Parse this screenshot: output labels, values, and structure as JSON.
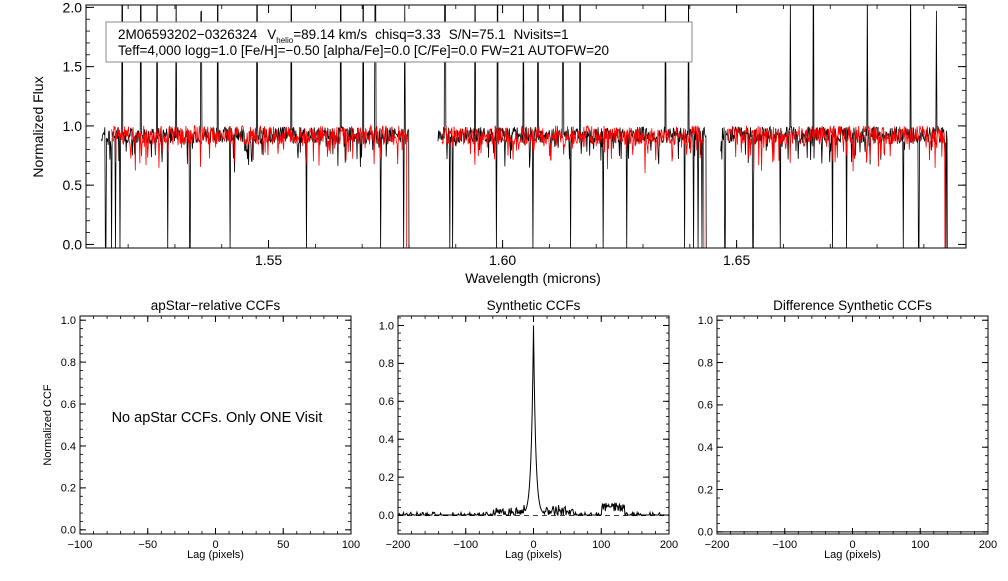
{
  "chart_data": [
    {
      "id": "spectrum",
      "type": "line",
      "xlabel": "Wavelength (microns)",
      "ylabel": "Normalized Flux",
      "xlim": [
        1.511,
        1.699
      ],
      "ylim": [
        -0.03,
        2.02
      ],
      "xticks": [
        {
          "v": 1.55,
          "label": "1.55"
        },
        {
          "v": 1.6,
          "label": "1.60"
        },
        {
          "v": 1.65,
          "label": "1.65"
        }
      ],
      "yticks": [
        {
          "v": 0.0,
          "label": "0.0"
        },
        {
          "v": 0.5,
          "label": "0.5"
        },
        {
          "v": 1.0,
          "label": "1.0"
        },
        {
          "v": 1.5,
          "label": "1.5"
        },
        {
          "v": 2.0,
          "label": "2.0"
        }
      ],
      "annotation": {
        "star_id": "2M06593202−0326324",
        "vhelio_symbol": "V",
        "vhelio_subscript": "helio",
        "vhelio_value": "=89.14 km/s",
        "chisq": "chisq=3.33",
        "snr": "S/N=75.1",
        "nvisits": "Nvisits=1",
        "params": "Teff=4,000 logg=1.0 [Fe/H]=−0.50 [alpha/Fe]=0.0 [C/Fe]=0.0 FW=21 AUTOFW=20"
      },
      "series": [
        {
          "name": "observed",
          "color": "#000000",
          "chips": [
            [
              1.5143,
              1.58
            ],
            [
              1.5862,
              1.6435
            ],
            [
              1.6466,
              1.695
            ]
          ],
          "continuum": 0.93
        },
        {
          "name": "model",
          "color": "#ff0000",
          "chips": [
            [
              1.5165,
              1.5795
            ],
            [
              1.587,
              1.643
            ],
            [
              1.648,
              1.6945
            ]
          ],
          "continuum": 0.93
        }
      ],
      "emission_spikes": [
        1.5187,
        1.5227,
        1.5262,
        1.5303,
        1.5356,
        1.5391,
        1.5475,
        1.5549,
        1.5654,
        1.5702,
        1.5728,
        1.5791,
        1.5877,
        1.5941,
        1.5989,
        1.6044,
        1.6076,
        1.6129,
        1.6166,
        1.6348,
        1.6397,
        1.6615,
        1.6664,
        1.6779,
        1.6872,
        1.6927
      ],
      "absorption_dips": [
        1.5152,
        1.5165,
        1.5173,
        1.5183,
        1.5285,
        1.5332,
        1.5418,
        1.5581,
        1.5739,
        1.5789,
        1.5887,
        1.5893,
        1.5987,
        1.6065,
        1.6145,
        1.6215,
        1.6265,
        1.6389,
        1.6408,
        1.6418,
        1.6426,
        1.6475,
        1.6535,
        1.6593,
        1.6705,
        1.6735,
        1.6856,
        1.6889,
        1.6947
      ]
    },
    {
      "id": "apstar_ccf",
      "type": "line",
      "title": "apStar−relative CCFs",
      "xlabel": "Lag (pixels)",
      "ylabel": "Normalized CCF",
      "xlim": [
        -100,
        100
      ],
      "ylim": [
        -0.02,
        1.02
      ],
      "xticks": [
        {
          "v": -100,
          "label": "−100"
        },
        {
          "v": -50,
          "label": "−50"
        },
        {
          "v": 0,
          "label": "0"
        },
        {
          "v": 50,
          "label": "50"
        },
        {
          "v": 100,
          "label": "100"
        }
      ],
      "yticks": [
        {
          "v": 0.0,
          "label": "0.0"
        },
        {
          "v": 0.2,
          "label": "0.2"
        },
        {
          "v": 0.4,
          "label": "0.4"
        },
        {
          "v": 0.6,
          "label": "0.6"
        },
        {
          "v": 0.8,
          "label": "0.8"
        },
        {
          "v": 1.0,
          "label": "1.0"
        }
      ],
      "message": "No apStar CCFs.  Only ONE Visit",
      "series": []
    },
    {
      "id": "synthetic_ccf",
      "type": "line",
      "title": "Synthetic CCFs",
      "xlabel": "Lag (pixels)",
      "ylabel": "",
      "xlim": [
        -200,
        200
      ],
      "ylim": [
        -0.1,
        1.05
      ],
      "xticks": [
        {
          "v": -200,
          "label": "−200"
        },
        {
          "v": -100,
          "label": "−100"
        },
        {
          "v": 0,
          "label": "0"
        },
        {
          "v": 100,
          "label": "100"
        },
        {
          "v": 200,
          "label": "200"
        }
      ],
      "yticks": [
        {
          "v": 0.0,
          "label": "0.0"
        },
        {
          "v": 0.2,
          "label": "0.2"
        },
        {
          "v": 0.4,
          "label": "0.4"
        },
        {
          "v": 0.6,
          "label": "0.6"
        },
        {
          "v": 0.8,
          "label": "0.8"
        },
        {
          "v": 1.0,
          "label": "1.0"
        }
      ],
      "baseline": -0.003,
      "series": [
        {
          "name": "ccf",
          "color": "#000000",
          "peak_lag": 0,
          "peak_value": 1.0
        }
      ]
    },
    {
      "id": "difference_ccf",
      "type": "line",
      "title": "Difference Synthetic CCFs",
      "xlabel": "Lag (pixels)",
      "ylabel": "",
      "xlim": [
        -200,
        200
      ],
      "ylim": [
        -0.01,
        1.02
      ],
      "xticks": [
        {
          "v": -200,
          "label": "−200"
        },
        {
          "v": -100,
          "label": "−100"
        },
        {
          "v": 0,
          "label": "0"
        },
        {
          "v": 100,
          "label": "100"
        },
        {
          "v": 200,
          "label": "200"
        }
      ],
      "yticks": [
        {
          "v": 0.0,
          "label": "0.0"
        },
        {
          "v": 0.2,
          "label": "0.2"
        },
        {
          "v": 0.4,
          "label": "0.4"
        },
        {
          "v": 0.6,
          "label": "0.6"
        },
        {
          "v": 0.8,
          "label": "0.8"
        },
        {
          "v": 1.0,
          "label": "1.0"
        }
      ],
      "series": [
        {
          "name": "difference",
          "color": "#000000",
          "values": [
            [
              -200,
              0.0
            ],
            [
              200,
              0.0
            ]
          ]
        }
      ]
    }
  ]
}
